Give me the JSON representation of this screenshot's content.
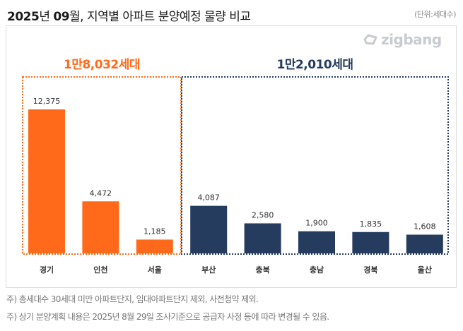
{
  "header": {
    "title_parts": [
      "2025",
      "년 ",
      "09",
      "월, 지역별 아파트 분양예정 물량 비교"
    ],
    "unit": "(단위:세대수)"
  },
  "logo": {
    "text": "zigbang",
    "color": "#c8cbcf"
  },
  "notes": [
    "주) 총세대수 30세대 미만 아파트단지, 임대아파트단지 제외, 사전청약 제외.",
    "주) 상기 분양계획 내용은 2025년 8월 29일 조사기준으로 공급자 사정 등에 따라 변경될 수 있음."
  ],
  "chart_data": {
    "type": "bar",
    "categories": [
      "경기",
      "인천",
      "서울",
      "부산",
      "충북",
      "충남",
      "경북",
      "울산"
    ],
    "values": [
      12375,
      4472,
      1185,
      4087,
      2580,
      1900,
      1835,
      1608
    ],
    "data_labels": [
      "12,375",
      "4,472",
      "1,185",
      "4,087",
      "2,580",
      "1,900",
      "1,835",
      "1,608"
    ],
    "groups": [
      {
        "label": "1만8,032세대",
        "members": [
          0,
          1,
          2
        ],
        "color": "#ff6a1a"
      },
      {
        "label": "1만2,010세대",
        "members": [
          3,
          4,
          5,
          6,
          7
        ],
        "color": "#253c5f"
      }
    ],
    "ylim": [
      0,
      12375
    ],
    "grid": false
  }
}
